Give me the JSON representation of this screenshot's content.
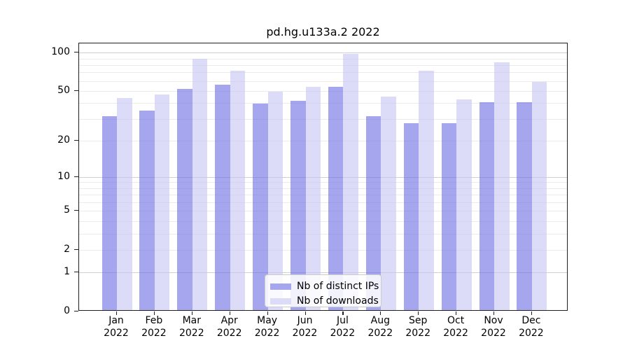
{
  "chart_data": {
    "type": "bar",
    "title": "pd.hg.u133a.2 2022",
    "categories": [
      "Jan",
      "Feb",
      "Mar",
      "Apr",
      "May",
      "Jun",
      "Jul",
      "Aug",
      "Sep",
      "Oct",
      "Nov",
      "Dec"
    ],
    "category_year": "2022",
    "series": [
      {
        "name": "Nb of distinct IPs",
        "color": "#a6a6ee",
        "fill_rgba": "rgba(107,107,227,0.6)",
        "values": [
          31,
          34,
          51,
          55,
          39,
          41,
          53,
          31,
          27,
          27,
          40,
          40
        ]
      },
      {
        "name": "Nb of downloads",
        "color": "#dcdcf8",
        "fill_rgba": "rgba(197,197,243,0.6)",
        "values": [
          43,
          46,
          88,
          71,
          48,
          53,
          96,
          44,
          71,
          42,
          82,
          58
        ]
      }
    ],
    "y_scale": "log1p",
    "y_ticks": [
      0,
      1,
      2,
      5,
      10,
      20,
      50,
      100
    ],
    "y_major_gridlines": [
      1,
      10,
      100
    ],
    "y_minor_gridlines": [
      2,
      3,
      4,
      5,
      6,
      7,
      8,
      9,
      20,
      30,
      40,
      50,
      60,
      70,
      80,
      90
    ],
    "ylim": [
      0,
      118.7
    ],
    "grid": true,
    "legend_position": "lower center",
    "frame_color": "#1f1f1f",
    "gridline_minor_color": "#ebebeb",
    "gridline_major_color": "#cfcfcf"
  }
}
